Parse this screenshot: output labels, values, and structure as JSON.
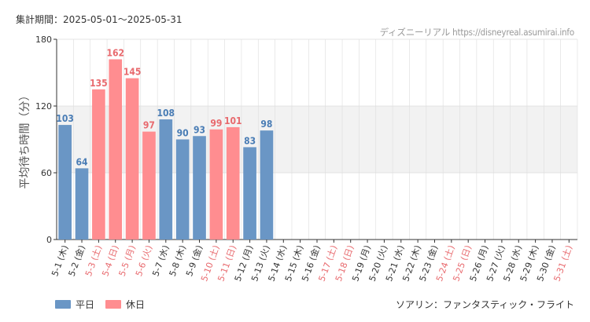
{
  "header": {
    "period_text": "集計期間：2025-05-01〜2025-05-31",
    "source_text": "ディズニーリアル https://disneyreal.asumirai.info"
  },
  "footer": {
    "attraction": "ソアリン：ファンタスティック・フライト"
  },
  "colors": {
    "weekday": "#6a96c5",
    "holiday": "#ff8d90",
    "weekday_label": "#4a7db5",
    "holiday_label": "#e86a6e",
    "band": "#f2f2f2",
    "grid": "#dddddd",
    "axis": "#333333"
  },
  "chart_data": {
    "type": "bar",
    "title": "",
    "ylabel": "平均待ち時間（分）",
    "xlabel": "",
    "ylim": [
      0,
      180
    ],
    "yticks": [
      0,
      60,
      120,
      180
    ],
    "shaded_range": [
      60,
      120
    ],
    "legend": [
      {
        "name": "平日",
        "key": "weekday"
      },
      {
        "name": "休日",
        "key": "holiday"
      }
    ],
    "legend_position": "bottom-left",
    "categories": [
      "5-1 (木)",
      "5-2 (金)",
      "5-3 (土)",
      "5-4 (日)",
      "5-5 (月)",
      "5-6 (火)",
      "5-7 (水)",
      "5-8 (木)",
      "5-9 (金)",
      "5-10 (土)",
      "5-11 (日)",
      "5-12 (月)",
      "5-13 (火)",
      "5-14 (水)",
      "5-15 (木)",
      "5-16 (金)",
      "5-17 (土)",
      "5-18 (日)",
      "5-19 (月)",
      "5-20 (火)",
      "5-21 (水)",
      "5-22 (木)",
      "5-23 (金)",
      "5-24 (土)",
      "5-25 (日)",
      "5-26 (月)",
      "5-27 (火)",
      "5-28 (水)",
      "5-29 (木)",
      "5-30 (金)",
      "5-31 (土)"
    ],
    "day_type": [
      "weekday",
      "weekday",
      "holiday",
      "holiday",
      "holiday",
      "holiday",
      "weekday",
      "weekday",
      "weekday",
      "holiday",
      "holiday",
      "weekday",
      "weekday",
      "weekday",
      "weekday",
      "weekday",
      "holiday",
      "holiday",
      "weekday",
      "weekday",
      "weekday",
      "weekday",
      "weekday",
      "holiday",
      "holiday",
      "weekday",
      "weekday",
      "weekday",
      "weekday",
      "weekday",
      "holiday"
    ],
    "values": [
      103,
      64,
      135,
      162,
      145,
      97,
      108,
      90,
      93,
      99,
      101,
      83,
      98,
      null,
      null,
      null,
      null,
      null,
      null,
      null,
      null,
      null,
      null,
      null,
      null,
      null,
      null,
      null,
      null,
      null,
      null
    ]
  }
}
